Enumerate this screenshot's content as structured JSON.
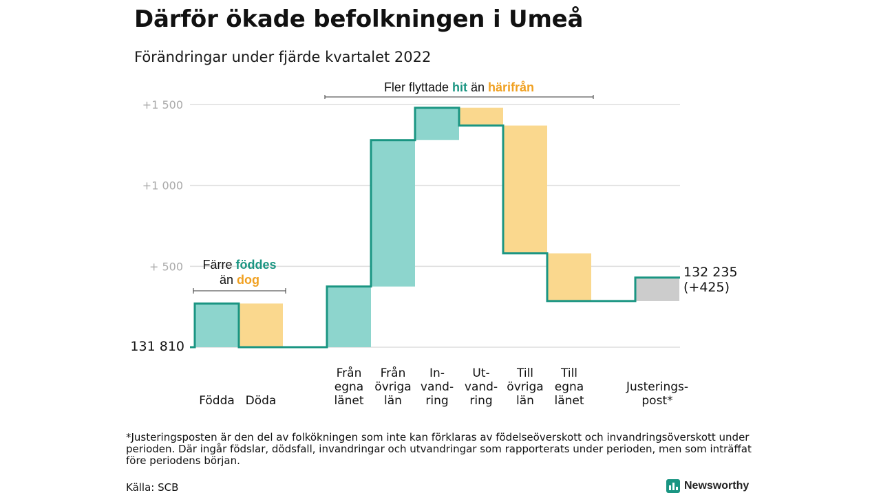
{
  "title": "Därför ökade befolkningen i Umeå",
  "subtitle": "Förändringar under fjärde kvartalet 2022",
  "colors": {
    "increase_fill": "#8dd5cd",
    "decrease_fill": "#fad88e",
    "adjustment_fill": "#cccccc",
    "line": "#1a9582",
    "teal_text": "#1a9582",
    "orange_text": "#f0a020",
    "grid": "#dddddd",
    "tick_text": "#aaaaaa"
  },
  "chart_data": {
    "type": "waterfall",
    "start_value": 131810,
    "start_label": "131 810",
    "end_label": "132 235",
    "end_change_label": "(+425)",
    "ylim": [
      0,
      1550
    ],
    "y_ticks": [
      {
        "value": 1500,
        "label": "+1 500"
      },
      {
        "value": 1000,
        "label": "+1 000"
      },
      {
        "value": 500,
        "label": "+ 500"
      },
      {
        "value": 0,
        "label": ""
      }
    ],
    "steps": [
      {
        "label": [
          "Födda"
        ],
        "change": 270,
        "kind": "increase"
      },
      {
        "label": [
          "Döda"
        ],
        "change": -270,
        "kind": "decrease"
      },
      {
        "label": [],
        "change": 0,
        "kind": "gap"
      },
      {
        "label": [
          "Från",
          "egna",
          "länet"
        ],
        "change": 375,
        "kind": "increase"
      },
      {
        "label": [
          "Från",
          "övriga",
          "län"
        ],
        "change": 905,
        "kind": "increase"
      },
      {
        "label": [
          "In-",
          "vand-",
          "ring"
        ],
        "change": 200,
        "kind": "increase"
      },
      {
        "label": [
          "Ut-",
          "vand-",
          "ring"
        ],
        "change": -110,
        "kind": "decrease"
      },
      {
        "label": [
          "Till",
          "övriga",
          "län"
        ],
        "change": -790,
        "kind": "decrease"
      },
      {
        "label": [
          "Till",
          "egna",
          "länet"
        ],
        "change": -295,
        "kind": "decrease"
      },
      {
        "label": [],
        "change": 0,
        "kind": "gap"
      },
      {
        "label": [
          "Justerings-",
          "post*"
        ],
        "change": 145,
        "kind": "adjustment"
      }
    ],
    "annotations": [
      {
        "parts": [
          {
            "text": "Färre ",
            "color": "dark"
          },
          {
            "text": "föddes",
            "color": "teal"
          }
        ],
        "parts2": [
          {
            "text": "än ",
            "color": "dark"
          },
          {
            "text": "dog",
            "color": "orange"
          }
        ]
      },
      {
        "parts": [
          {
            "text": "Fler flyttade ",
            "color": "dark"
          },
          {
            "text": "hit",
            "color": "teal"
          },
          {
            "text": " än ",
            "color": "dark"
          },
          {
            "text": "härifrån",
            "color": "orange"
          }
        ]
      }
    ]
  },
  "footnote": "*Justeringsposten är den del av folkökningen som inte kan förklaras av födelseöverskott och invandringsöverskott under perioden. Där ingår födslar, dödsfall, invandringar och utvandringar som rapporterats under perioden, men som inträffat före periodens början.",
  "source": "Källa: SCB",
  "brand": {
    "name": "Newsworthy",
    "icon": "bar-chart-logo-icon"
  }
}
